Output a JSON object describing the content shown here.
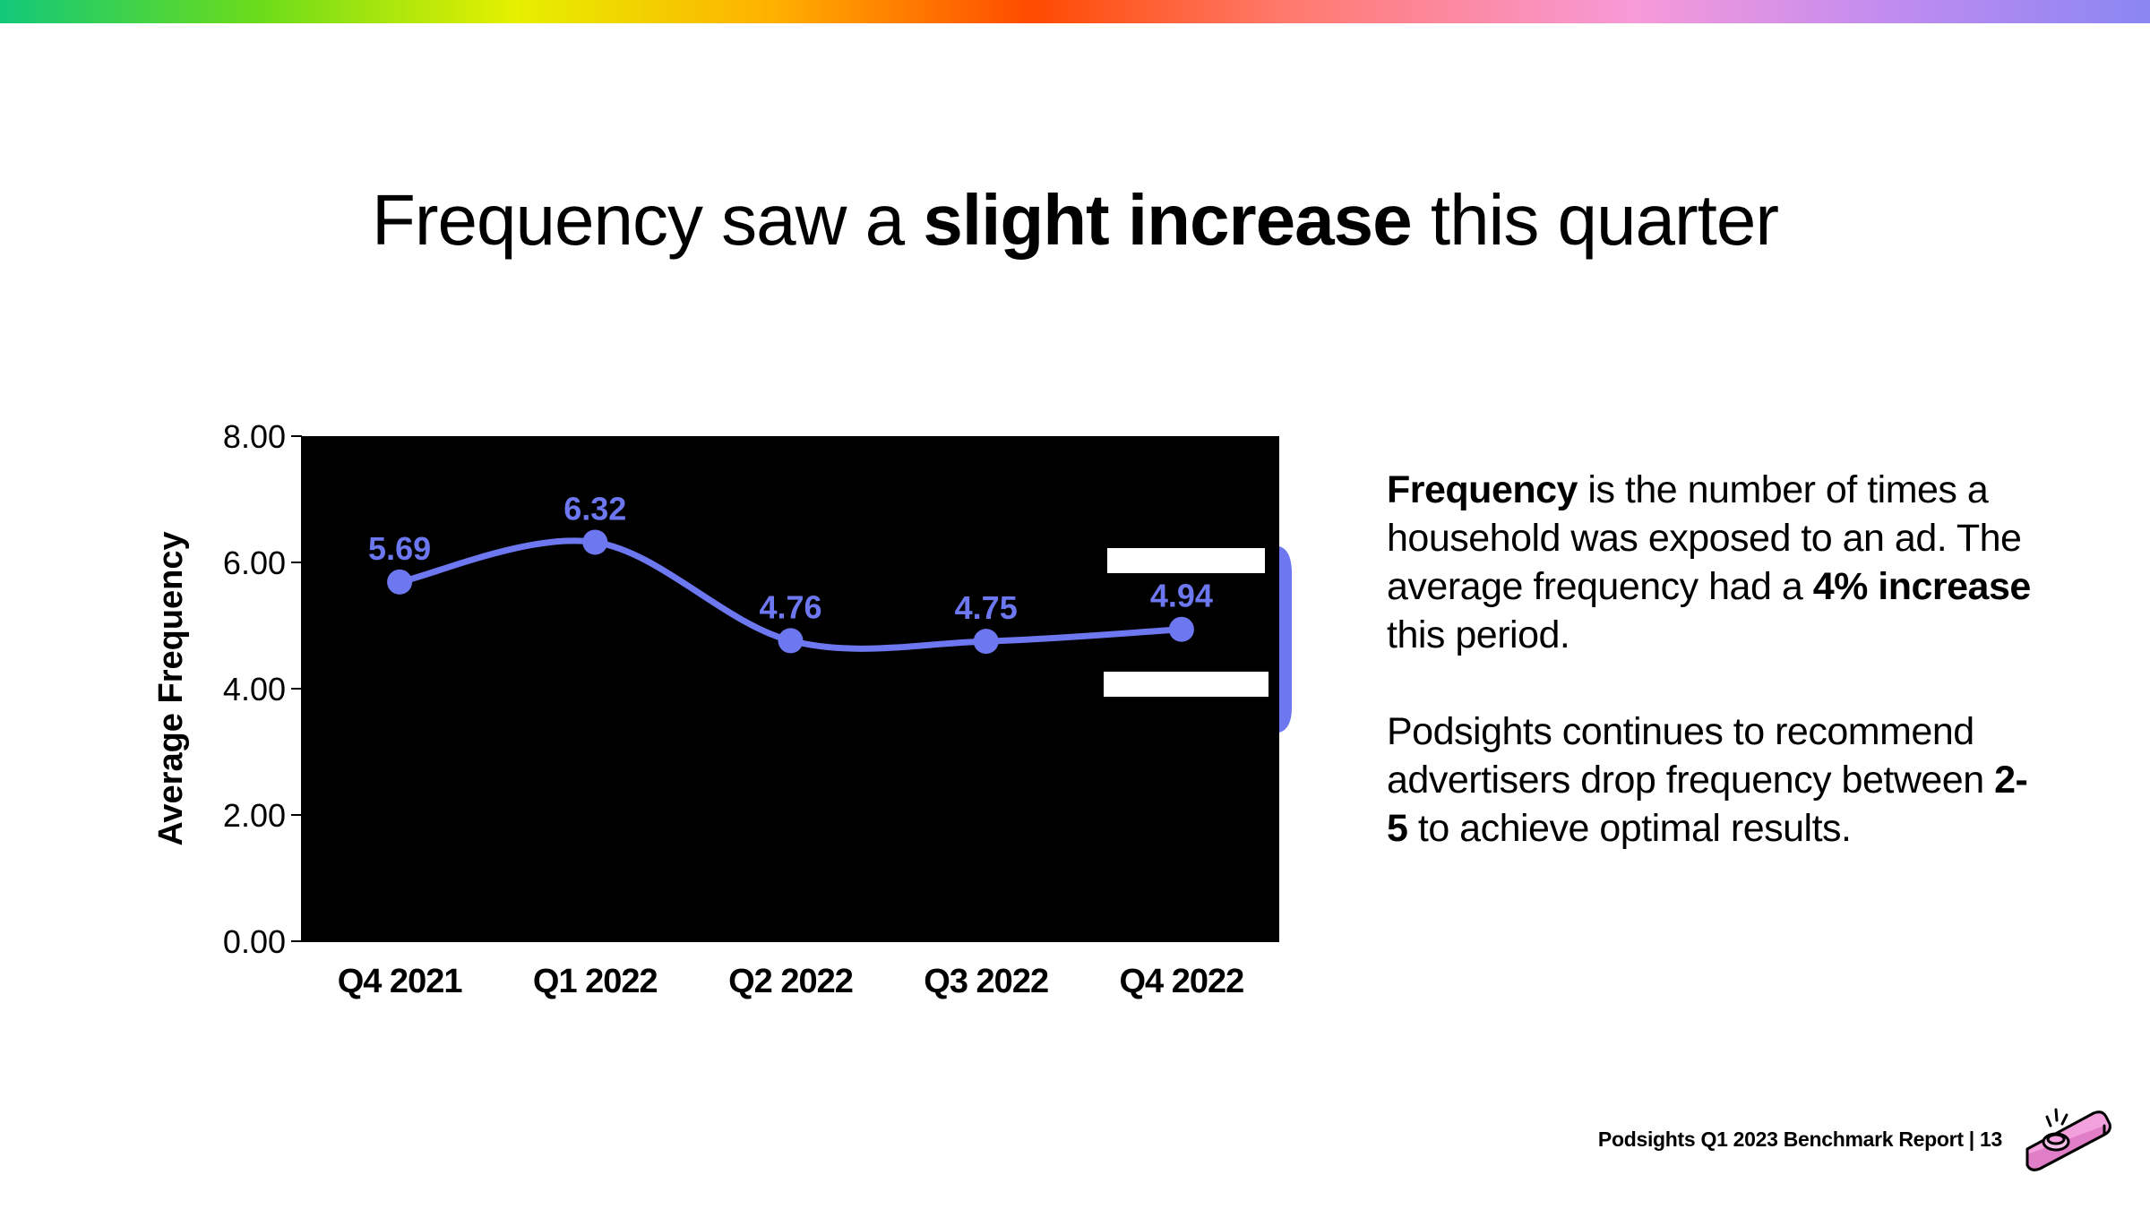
{
  "title": {
    "part1": "Frequency saw a ",
    "bold": "slight increase",
    "part2": " this quarter"
  },
  "description": {
    "p1_bold": "Frequency",
    "p1_text1": " is the number of times a household was exposed to an ad. The average frequency had a ",
    "p1_bold2": "4% increase",
    "p1_text2": " this period.",
    "p2_text1": "Podsights continues to recommend advertisers drop frequency between ",
    "p2_bold": "2-5",
    "p2_text2": " to achieve optimal results."
  },
  "footer": {
    "text": "Podsights Q1 2023 Benchmark Report | 13"
  },
  "logo": {
    "icon": "kazoo-icon"
  },
  "colors": {
    "accent": "#6d78f0",
    "plot_bg": "#000000",
    "text": "#000000"
  },
  "chart_data": {
    "type": "line",
    "categories": [
      "Q4 2021",
      "Q1 2022",
      "Q2 2022",
      "Q3 2022",
      "Q4 2022"
    ],
    "values": [
      5.69,
      6.32,
      4.76,
      4.75,
      4.94
    ],
    "data_labels": [
      "5.69",
      "6.32",
      "4.76",
      "4.75",
      "4.94"
    ],
    "ylabel": "Average Frequency",
    "xlabel": "",
    "ylim": [
      0,
      8
    ],
    "yticks": [
      0,
      2,
      4,
      6,
      8
    ],
    "ytick_labels": [
      "0.00",
      "2.00",
      "4.00",
      "6.00",
      "8.00"
    ],
    "grid": false,
    "legend": "none"
  }
}
